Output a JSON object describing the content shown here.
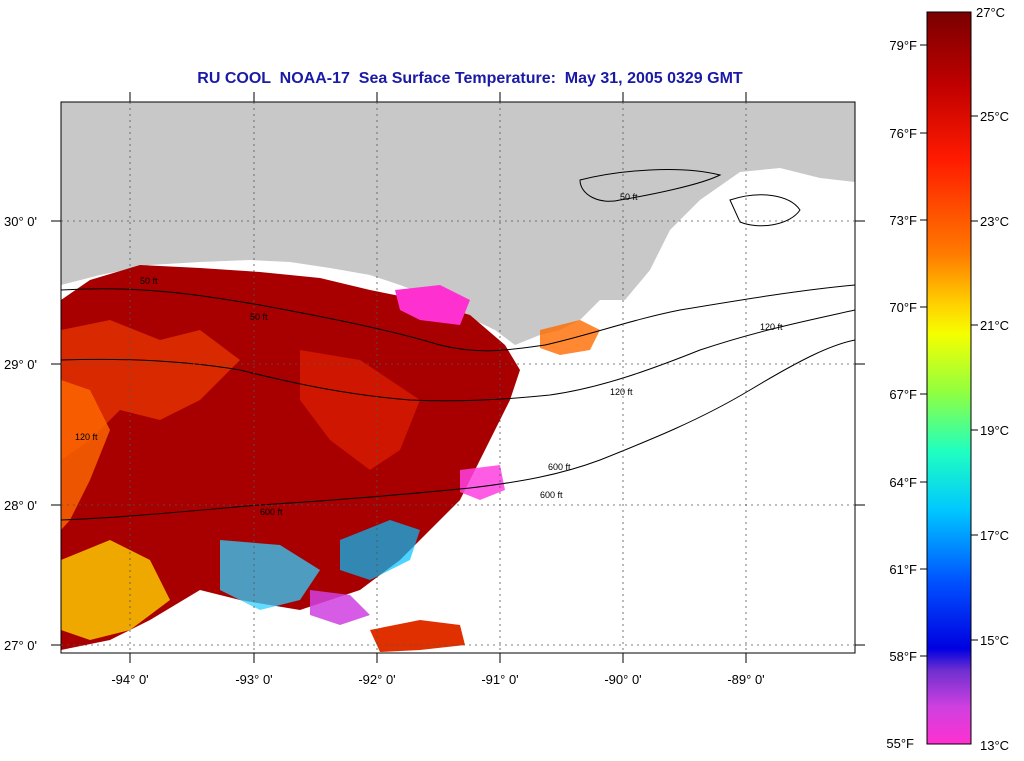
{
  "title": "RU COOL  NOAA-17  Sea Surface Temperature:  May 31, 2005 0329 GMT",
  "lat_labels": [
    "30° 0'",
    "29° 0'",
    "28° 0'",
    "27° 0'"
  ],
  "lon_labels": [
    "-94° 0'",
    "-93° 0'",
    "-92° 0'",
    "-91° 0'",
    "-90° 0'",
    "-89° 0'"
  ],
  "contour_labels": [
    "50 ft",
    "120 ft",
    "600 ft",
    "50 ft",
    "120 ft",
    "600 ft",
    "50 ft",
    "120 ft",
    "600 ft"
  ],
  "colorbar": {
    "fahrenheit_labels": [
      "79°F",
      "76°F",
      "73°F",
      "70°F",
      "67°F",
      "64°F",
      "61°F",
      "58°F",
      "55°F"
    ],
    "celsius_labels": [
      "27°C",
      "25°C",
      "23°C",
      "21°C",
      "19°C",
      "17°C",
      "15°C",
      "13°C"
    ],
    "range_c": [
      13,
      27
    ]
  },
  "colors": {
    "title": "#1a1aa6",
    "land": "#c8c8c8",
    "warm": "#a00000",
    "no_data": "#ffffff"
  }
}
